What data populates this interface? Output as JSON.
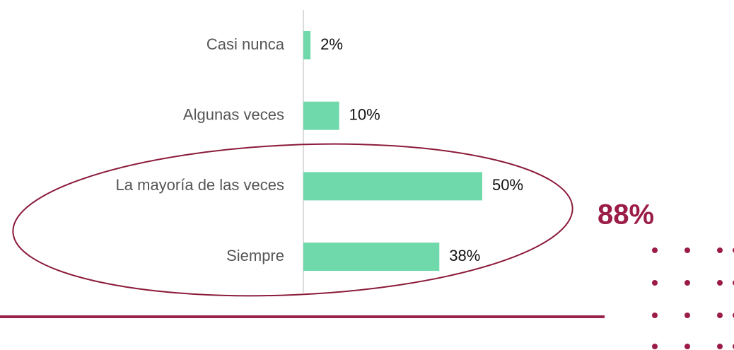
{
  "chart_data": {
    "type": "bar",
    "orientation": "horizontal",
    "categories": [
      "Casi nunca",
      "Algunas veces",
      "La mayoría de las veces",
      "Siempre"
    ],
    "values": [
      2,
      10,
      50,
      38
    ],
    "value_labels": [
      "2%",
      "10%",
      "50%",
      "38%"
    ],
    "color": "#70d9ab",
    "annotation": "88%"
  }
}
